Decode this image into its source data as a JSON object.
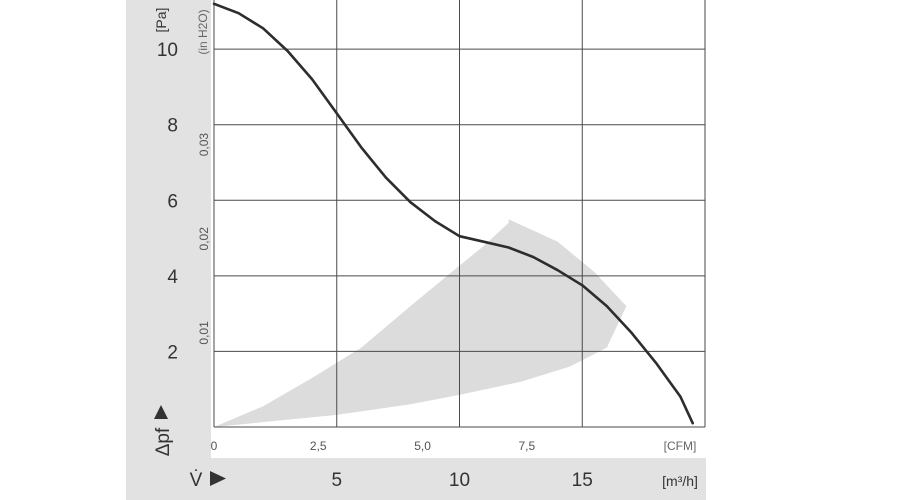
{
  "chart_data": {
    "type": "line",
    "title": "",
    "ylabel": "Δpf",
    "ylabel_unit": "[Pa]",
    "y2label_unit": "(in H2O)",
    "xlabel": "V̇",
    "xlabel_unit": "[m³/h]",
    "x_cfm_unit": "[CFM]",
    "xlim_m3h": [
      0,
      20
    ],
    "ylim_pa": [
      0,
      11.3
    ],
    "grid": true,
    "y_ticks_pa": [
      "2",
      "4",
      "6",
      "8",
      "10"
    ],
    "y_ticks_inh2o": [
      "0,01",
      "0,02",
      "0,03"
    ],
    "x_ticks_cfm": [
      "0",
      "2,5",
      "5,0",
      "7,5"
    ],
    "x_ticks_m3h": [
      "5",
      "10",
      "15"
    ],
    "series": [
      {
        "x_m3h": [
          0,
          1,
          2,
          3,
          4,
          5,
          6,
          7,
          8,
          9,
          10,
          11,
          12,
          13,
          14,
          15,
          16,
          17,
          18,
          19,
          19.5
        ],
        "y_pa": [
          11.2,
          10.95,
          10.55,
          9.95,
          9.2,
          8.3,
          7.4,
          6.6,
          5.95,
          5.45,
          5.05,
          4.9,
          4.75,
          4.5,
          4.15,
          3.75,
          3.2,
          2.5,
          1.7,
          0.8,
          0.1
        ]
      }
    ],
    "operating_region": {
      "upper_x_m3h": [
        0,
        2,
        4,
        6,
        8,
        9.5,
        11,
        12
      ],
      "upper_y_pa": [
        0,
        0.55,
        1.3,
        2.1,
        3.2,
        4.0,
        4.8,
        5.4
      ],
      "right_x_m3h": [
        12,
        14,
        15.5,
        16.8
      ],
      "right_y_pa": [
        5.5,
        4.9,
        4.1,
        3.2
      ],
      "lower_x_m3h": [
        16.0,
        14.5,
        12.5,
        10,
        8,
        5,
        0
      ],
      "lower_y_pa": [
        2.1,
        1.6,
        1.2,
        0.85,
        0.6,
        0.32,
        0
      ]
    },
    "colors": {
      "curve": "#2d2d2d",
      "region": "#dcdcdc",
      "grid": "#4a4a4a",
      "axis_band": "#e2e2e2"
    }
  }
}
